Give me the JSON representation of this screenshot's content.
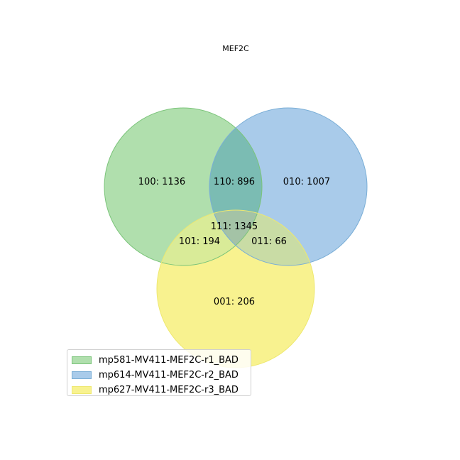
{
  "title": "MEF2C",
  "sets": [
    {
      "name": "mp581-MV411-MEF2C-r1_BAD",
      "fill": "#b0dfad",
      "edge": "#7bc47a"
    },
    {
      "name": "mp614-MV411-MEF2C-r2_BAD",
      "fill": "#a9cbea",
      "edge": "#7aaed6"
    },
    {
      "name": "mp627-MV411-MEF2C-r3_BAD",
      "fill": "#f8f28f",
      "edge": "#eee870"
    }
  ],
  "regions": {
    "r100": "100: 1136",
    "r010": "010: 1007",
    "r110": "110: 896",
    "r111": "111: 1345",
    "r101": "101: 194",
    "r011": "011: 66",
    "r001": "001: 206"
  },
  "overlap_colors": {
    "r110": "#7bbcb3",
    "r101": "#d9eb98",
    "r011": "#c9dca5",
    "r111": "#a4c3a6"
  },
  "legend_position": "lower-left"
}
